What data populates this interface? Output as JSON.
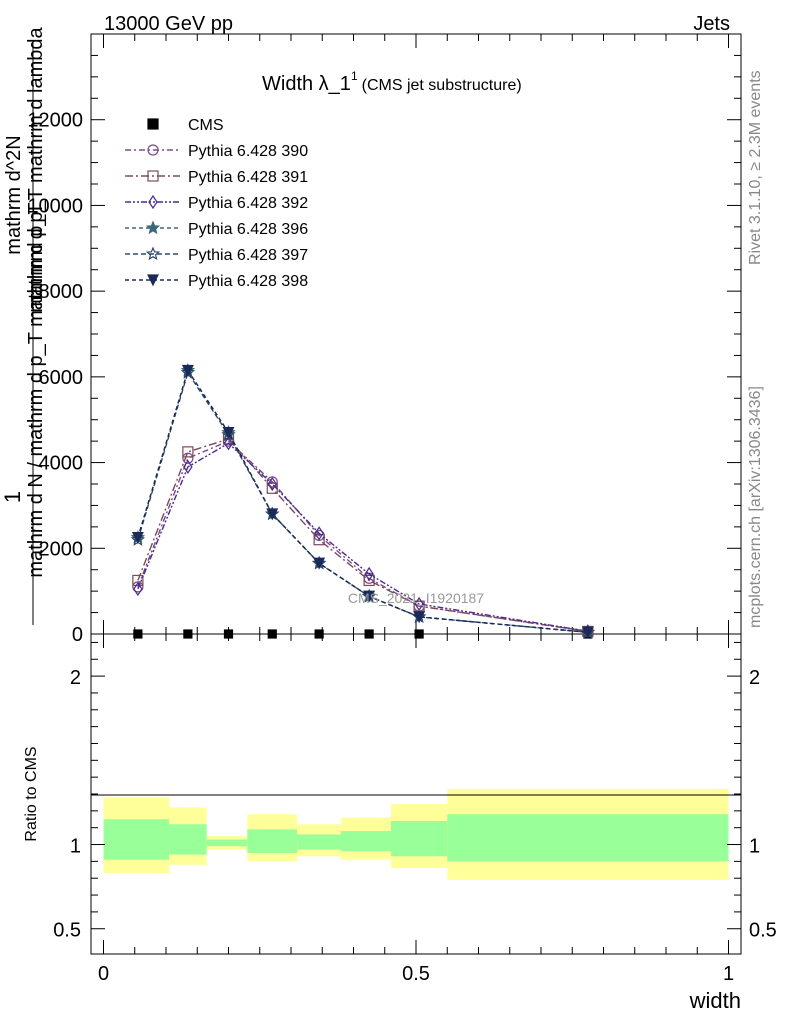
{
  "header": {
    "left": "13000 GeV pp",
    "right": "Jets"
  },
  "side_labels": {
    "rivet": "Rivet 3.1.10, ≥ 2.3M events",
    "mcplots": "mcplots.cern.ch [arXiv:1306.3436]"
  },
  "watermark": "CMS_2021_I1920187",
  "colors": {
    "cms": "#000000",
    "p390": "#7b4a8c",
    "p391": "#7a4a5a",
    "p392": "#4a2a8c",
    "p396": "#3a6a7a",
    "p397": "#2a4a6a",
    "p398": "#1a2a5a",
    "band_inner": "#99ff99",
    "band_outer": "#ffff99"
  },
  "chart_data": [
    {
      "type": "line",
      "title": "Width λ_1^1 (CMS jet substructure)",
      "title_parts": {
        "main": "Width λ_1",
        "sup": "1",
        "sub": "(CMS jet substructure)"
      },
      "ylabel_lines": [
        "1",
        "mathrm d N / mathrm d p_T mathrm d p_T",
        "mathrm d^2N",
        "mathrm d p_T mathrm d lambda"
      ],
      "ylim": [
        0,
        14000
      ],
      "xlim": [
        -0.02,
        1.02
      ],
      "yticks": [
        0,
        2000,
        4000,
        6000,
        8000,
        10000,
        12000
      ],
      "ytick_labels": [
        "0",
        "2000",
        "4000",
        "6000",
        "8000",
        "10000",
        "12000"
      ],
      "legend_position": "top-left",
      "x": [
        0.055,
        0.135,
        0.2,
        0.27,
        0.345,
        0.425,
        0.505,
        0.775
      ],
      "series": [
        {
          "name": "CMS",
          "marker": "square",
          "values": [
            0,
            0,
            0,
            0,
            0,
            0,
            0,
            0
          ]
        },
        {
          "name": "Pythia 6.428 390",
          "marker": "circle",
          "values": [
            1100,
            4100,
            4500,
            3550,
            2300,
            1300,
            650,
            60
          ]
        },
        {
          "name": "Pythia 6.428 391",
          "marker": "open-square",
          "values": [
            1250,
            4250,
            4550,
            3400,
            2200,
            1250,
            650,
            60
          ]
        },
        {
          "name": "Pythia 6.428 392",
          "marker": "diamond",
          "values": [
            1050,
            3900,
            4450,
            3500,
            2350,
            1400,
            700,
            65
          ]
        },
        {
          "name": "Pythia 6.428 396",
          "marker": "star-filled",
          "values": [
            2250,
            6150,
            4700,
            2800,
            1650,
            880,
            400,
            40
          ]
        },
        {
          "name": "Pythia 6.428 397",
          "marker": "star-open",
          "values": [
            2200,
            6100,
            4650,
            2800,
            1650,
            880,
            400,
            40
          ]
        },
        {
          "name": "Pythia 6.428 398",
          "marker": "triangle-down",
          "values": [
            2250,
            6150,
            4700,
            2800,
            1650,
            880,
            400,
            40
          ]
        }
      ]
    },
    {
      "type": "area",
      "ylabel": "Ratio to CMS",
      "xlabel": "width",
      "ylim": [
        0.35,
        2.25
      ],
      "xlim": [
        -0.02,
        1.02
      ],
      "xticks": [
        0,
        0.5,
        1
      ],
      "xtick_labels": [
        "0",
        "0.5",
        "1"
      ],
      "yticks": [
        0.5,
        1,
        2
      ],
      "ytick_labels": [
        "0.5",
        "1",
        "2"
      ],
      "bins": [
        {
          "lo": 0.0,
          "hi": 0.105,
          "inner": [
            0.91,
            1.15
          ],
          "outer": [
            0.83,
            1.28
          ]
        },
        {
          "lo": 0.105,
          "hi": 0.165,
          "inner": [
            0.94,
            1.12
          ],
          "outer": [
            0.88,
            1.22
          ]
        },
        {
          "lo": 0.165,
          "hi": 0.23,
          "inner": [
            0.99,
            1.03
          ],
          "outer": [
            0.97,
            1.05
          ]
        },
        {
          "lo": 0.23,
          "hi": 0.31,
          "inner": [
            0.95,
            1.09
          ],
          "outer": [
            0.9,
            1.18
          ]
        },
        {
          "lo": 0.31,
          "hi": 0.38,
          "inner": [
            0.97,
            1.06
          ],
          "outer": [
            0.93,
            1.12
          ]
        },
        {
          "lo": 0.38,
          "hi": 0.46,
          "inner": [
            0.96,
            1.08
          ],
          "outer": [
            0.91,
            1.16
          ]
        },
        {
          "lo": 0.46,
          "hi": 0.55,
          "inner": [
            0.93,
            1.14
          ],
          "outer": [
            0.86,
            1.24
          ]
        },
        {
          "lo": 0.55,
          "hi": 1.0,
          "inner": [
            0.9,
            1.18
          ],
          "outer": [
            0.79,
            1.33
          ]
        }
      ]
    }
  ]
}
